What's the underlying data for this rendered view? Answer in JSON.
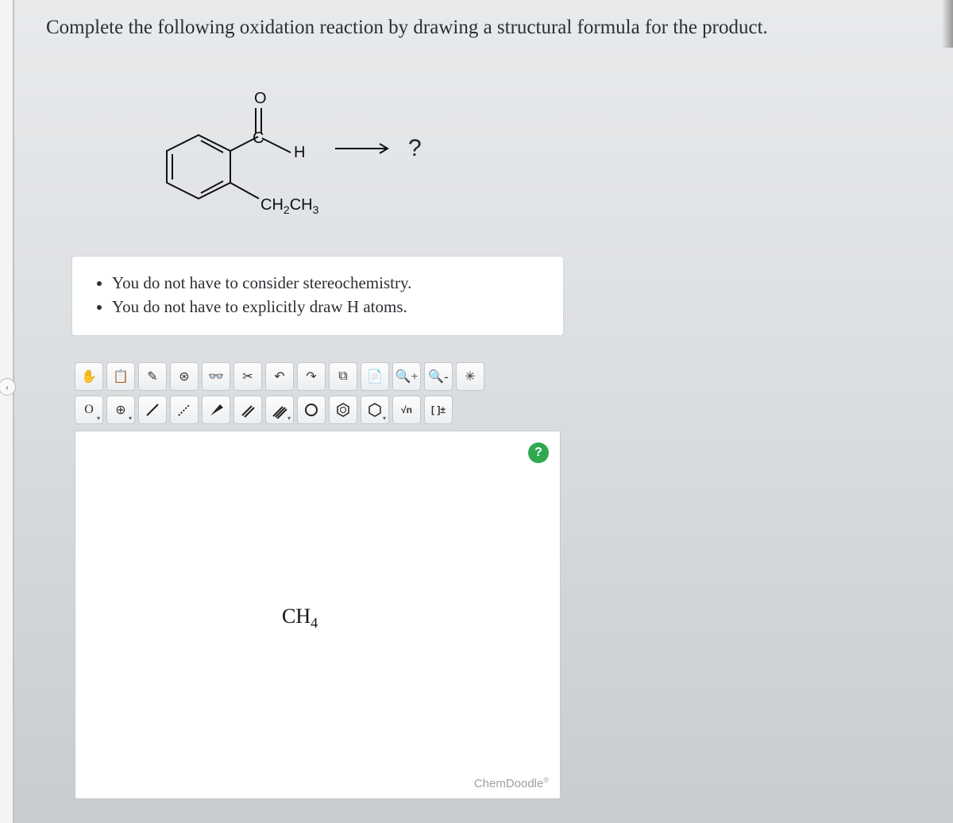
{
  "question": {
    "prompt": "Complete the following oxidation reaction by drawing a structural formula for the product.",
    "arrow_target": "?"
  },
  "molecule_labels": {
    "oxygen": "O",
    "carbon": "C",
    "hydrogen": "H",
    "ethyl_html": "CH<sub>2</sub>CH<sub>3</sub>"
  },
  "instructions": [
    "You do not have to consider stereochemistry.",
    "You do not have to explicitly draw H atoms."
  ],
  "toolbar_row1": [
    {
      "name": "hand-icon",
      "glyph": "✋"
    },
    {
      "name": "clipboard-icon",
      "glyph": "📋"
    },
    {
      "name": "pencil-icon",
      "glyph": "✎"
    },
    {
      "name": "atom-icon",
      "glyph": "⊛"
    },
    {
      "name": "glasses-icon",
      "glyph": "👓"
    },
    {
      "name": "scissors-icon",
      "glyph": "✂"
    },
    {
      "name": "undo-icon",
      "glyph": "↶"
    },
    {
      "name": "redo-icon",
      "glyph": "↷"
    },
    {
      "name": "copy-icon",
      "glyph": "⧉"
    },
    {
      "name": "paste-icon",
      "glyph": "📄"
    },
    {
      "name": "zoom-in-icon",
      "glyph": "🔍+"
    },
    {
      "name": "zoom-out-icon",
      "glyph": "🔍-"
    },
    {
      "name": "fragment-icon",
      "glyph": "✳"
    }
  ],
  "toolbar_row2": [
    {
      "name": "element-o-button",
      "label": "O",
      "has_caret": true
    },
    {
      "name": "add-button",
      "glyph": "⊕",
      "has_caret": true
    },
    {
      "name": "single-bond-button",
      "svg": "line"
    },
    {
      "name": "dotted-bond-button",
      "svg": "dots"
    },
    {
      "name": "wedge-bond-button",
      "svg": "wedge"
    },
    {
      "name": "double-bond-button",
      "svg": "double"
    },
    {
      "name": "triple-bond-button",
      "svg": "triple",
      "has_caret": true
    },
    {
      "name": "ring-o-button",
      "svg": "circle"
    },
    {
      "name": "benzene-button",
      "svg": "benzene"
    },
    {
      "name": "hexagon-button",
      "svg": "hexagon",
      "has_caret": true
    },
    {
      "name": "sn-button",
      "label": "√n",
      "small": true
    },
    {
      "name": "charge-button",
      "label": "[ ]±",
      "small": true
    }
  ],
  "canvas": {
    "help_glyph": "?",
    "molecule_html": "CH<sub>4</sub>",
    "watermark": "ChemDoodle"
  },
  "rail": {
    "chevron": "‹"
  },
  "colors": {
    "page_bg_top": "#e8eaec",
    "page_bg_bottom": "#c8cccf",
    "box_bg": "#ffffff",
    "border": "#c5c8cb",
    "text": "#2b2f33",
    "help_green": "#2fa84f",
    "watermark": "#9aa0a5"
  }
}
